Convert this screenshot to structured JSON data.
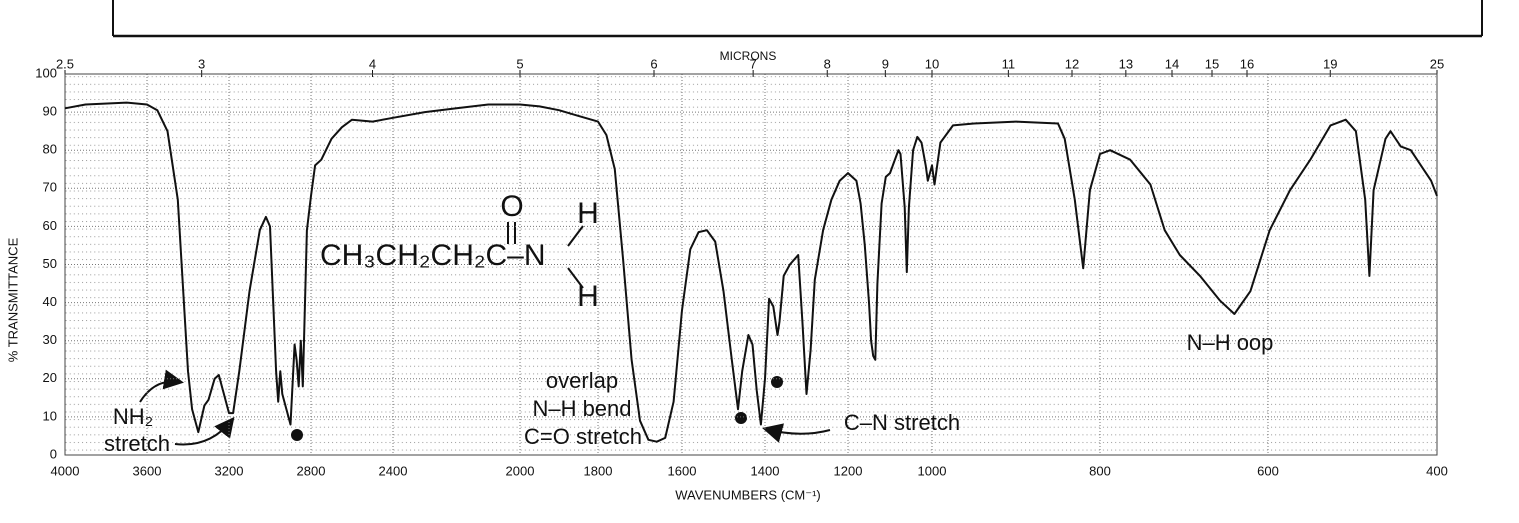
{
  "chart_data": {
    "type": "line",
    "x_label": "WAVENUMBERS (CM⁻¹)",
    "y_label": "% TRANSMITTANCE",
    "x2_label": "MICRONS",
    "color": "#111111",
    "grid": true,
    "xlim": [
      4000,
      400
    ],
    "ylim": [
      0,
      100
    ],
    "xticks": [
      4000,
      3600,
      3200,
      2800,
      2400,
      2000,
      1800,
      1600,
      1400,
      1200,
      1000,
      800,
      600,
      400
    ],
    "yticks": [
      0,
      10,
      20,
      30,
      40,
      50,
      60,
      70,
      80,
      90,
      100
    ],
    "x2ticks": [
      2.5,
      3,
      4,
      5,
      6,
      7,
      8,
      9,
      10,
      11,
      12,
      13,
      14,
      15,
      16,
      19,
      25
    ],
    "x": [
      4000,
      3900,
      3700,
      3600,
      3550,
      3500,
      3450,
      3420,
      3400,
      3380,
      3350,
      3320,
      3300,
      3270,
      3250,
      3230,
      3200,
      3180,
      3150,
      3100,
      3050,
      3020,
      3000,
      2970,
      2960,
      2950,
      2940,
      2920,
      2900,
      2880,
      2870,
      2860,
      2850,
      2840,
      2820,
      2800,
      2780,
      2750,
      2700,
      2650,
      2600,
      2500,
      2400,
      2300,
      2200,
      2100,
      2000,
      1950,
      1900,
      1850,
      1800,
      1780,
      1760,
      1740,
      1720,
      1700,
      1680,
      1660,
      1640,
      1620,
      1600,
      1580,
      1560,
      1540,
      1520,
      1500,
      1480,
      1465,
      1455,
      1440,
      1430,
      1420,
      1410,
      1400,
      1390,
      1380,
      1370,
      1365,
      1355,
      1340,
      1320,
      1310,
      1300,
      1290,
      1280,
      1260,
      1240,
      1220,
      1200,
      1180,
      1170,
      1160,
      1150,
      1145,
      1140,
      1135,
      1130,
      1120,
      1110,
      1100,
      1090,
      1080,
      1075,
      1065,
      1060,
      1055,
      1045,
      1035,
      1025,
      1015,
      1010,
      1005,
      1000,
      997,
      990,
      975,
      950,
      900,
      850,
      842,
      830,
      820,
      812,
      800,
      788,
      764,
      740,
      723,
      705,
      681,
      657,
      640,
      621,
      598,
      574,
      550,
      526,
      508,
      496,
      485,
      480,
      475,
      461,
      455,
      443,
      431,
      419,
      407,
      400
    ],
    "values": [
      91,
      92,
      92.5,
      92,
      90.5,
      85,
      67,
      40,
      22,
      12,
      6,
      13,
      14.5,
      20,
      21,
      17,
      11,
      11,
      22,
      43,
      59,
      62.5,
      60,
      22,
      14,
      22,
      16,
      12,
      8,
      29,
      25,
      18,
      30,
      18,
      59,
      68,
      76,
      77.5,
      83,
      86,
      88,
      87.5,
      88.5,
      90,
      91,
      92,
      92,
      91.5,
      90.5,
      89,
      87.5,
      84,
      75,
      51,
      25,
      9,
      4,
      3.5,
      4.5,
      14,
      38,
      54,
      58.5,
      59,
      56,
      43,
      25,
      12,
      22,
      31.5,
      29,
      17,
      8,
      20,
      41,
      39,
      31.5,
      35,
      47,
      50,
      52.5,
      35,
      16,
      27.5,
      46,
      59,
      67,
      72,
      74,
      72,
      66,
      55,
      40,
      30,
      26,
      25,
      45,
      66,
      73,
      74,
      77,
      80,
      79,
      65,
      48,
      65,
      80,
      83.5,
      82,
      76,
      72,
      74,
      76,
      71,
      82,
      86.5,
      87,
      87.5,
      87,
      83,
      67,
      49,
      69.5,
      79,
      80,
      77.5,
      71,
      59,
      52.5,
      47,
      40.5,
      37,
      43,
      59,
      69.5,
      77.5,
      86.5,
      88,
      85,
      67,
      47,
      69.5,
      83,
      85,
      81,
      80,
      76,
      72,
      68
    ],
    "annotations": [
      "NH₂",
      "stretch",
      "overlap",
      "N–H bend",
      "C=O stretch",
      "C–N stretch",
      "N–H oop",
      "CH₃CH₂CH₂C–N",
      "O",
      "H",
      "H"
    ]
  }
}
